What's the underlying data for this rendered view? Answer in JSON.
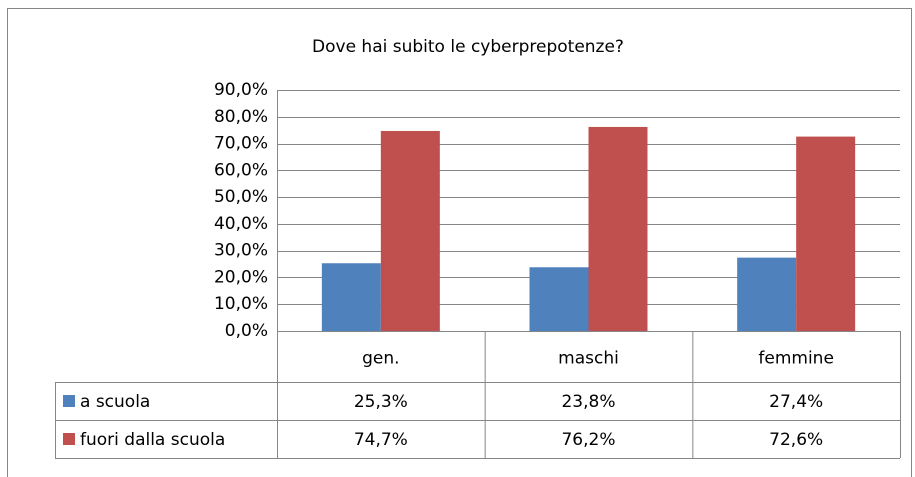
{
  "chart_data": {
    "type": "bar",
    "title": "Dove hai subito le cyberprepotenze?",
    "categories": [
      "gen.",
      "maschi",
      "femmine"
    ],
    "series": [
      {
        "name": "a scuola",
        "color": "#4f81bd",
        "values": [
          25.3,
          23.8,
          27.4
        ],
        "value_labels": [
          "25,3%",
          "23,8%",
          "27,4%"
        ]
      },
      {
        "name": "fuori dalla scuola",
        "color": "#c0504d",
        "values": [
          74.7,
          76.2,
          72.6
        ],
        "value_labels": [
          "74,7%",
          "76,2%",
          "72,6%"
        ]
      }
    ],
    "ylim": [
      0,
      90
    ],
    "yticks": [
      {
        "value": 0,
        "label": "0,0%"
      },
      {
        "value": 10,
        "label": "10,0%"
      },
      {
        "value": 20,
        "label": "20,0%"
      },
      {
        "value": 30,
        "label": "30,0%"
      },
      {
        "value": 40,
        "label": "40,0%"
      },
      {
        "value": 50,
        "label": "50,0%"
      },
      {
        "value": 60,
        "label": "60,0%"
      },
      {
        "value": 70,
        "label": "70,0%"
      },
      {
        "value": 80,
        "label": "80,0%"
      },
      {
        "value": 90,
        "label": "90,0%"
      }
    ],
    "grid": true,
    "legend": "table"
  }
}
